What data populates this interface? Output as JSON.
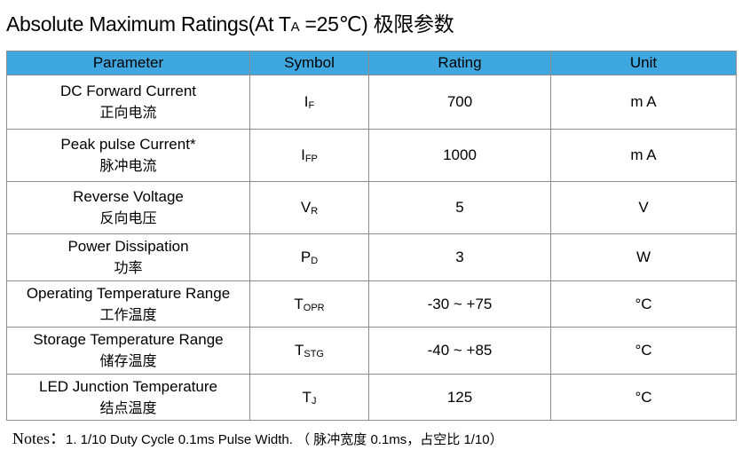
{
  "header": {
    "title": {
      "text": "Absolute Maximum Ratings(At T",
      "sub": "A",
      "suffix": " =25℃)",
      "cn": "极限参数"
    }
  },
  "table": {
    "columns": [
      "Parameter",
      "Symbol",
      "Rating",
      "Unit"
    ],
    "rows": [
      {
        "en": "DC Forward Current",
        "cn": "正向电流",
        "symbol": {
          "main": "I",
          "sub": "F"
        },
        "rating": "700",
        "unit": "m A"
      },
      {
        "en": "Peak pulse Current*",
        "cn": "脉冲电流",
        "symbol": {
          "main": "I",
          "sub": "FP"
        },
        "rating": "1000",
        "unit": "m A"
      },
      {
        "en": "Reverse Voltage",
        "cn": "反向电压",
        "symbol": {
          "main": "V",
          "sub": "R"
        },
        "rating": "5",
        "unit": "V"
      },
      {
        "en": "Power Dissipation",
        "cn": "功率",
        "symbol": {
          "main": "P",
          "sub": "D"
        },
        "rating": "3",
        "unit": "W"
      },
      {
        "en": "Operating Temperature Range",
        "cn": "工作温度",
        "symbol": {
          "main": "T",
          "sub": "OPR"
        },
        "rating": "-30 ~ +75",
        "unit": "°C"
      },
      {
        "en": "Storage Temperature Range",
        "cn": "储存温度",
        "symbol": {
          "main": "T",
          "sub": "STG"
        },
        "rating": "-40 ~ +85",
        "unit": "°C"
      },
      {
        "en": "LED Junction Temperature",
        "cn": "结点温度",
        "symbol": {
          "main": "T",
          "sub": "J"
        },
        "rating": "125",
        "unit": "°C"
      }
    ]
  },
  "notes": {
    "label": "Notes：",
    "text": "1. 1/10 Duty Cycle 0.1ms Pulse Width. （ 脉冲宽度 0.1ms，占空比 1/10）"
  }
}
